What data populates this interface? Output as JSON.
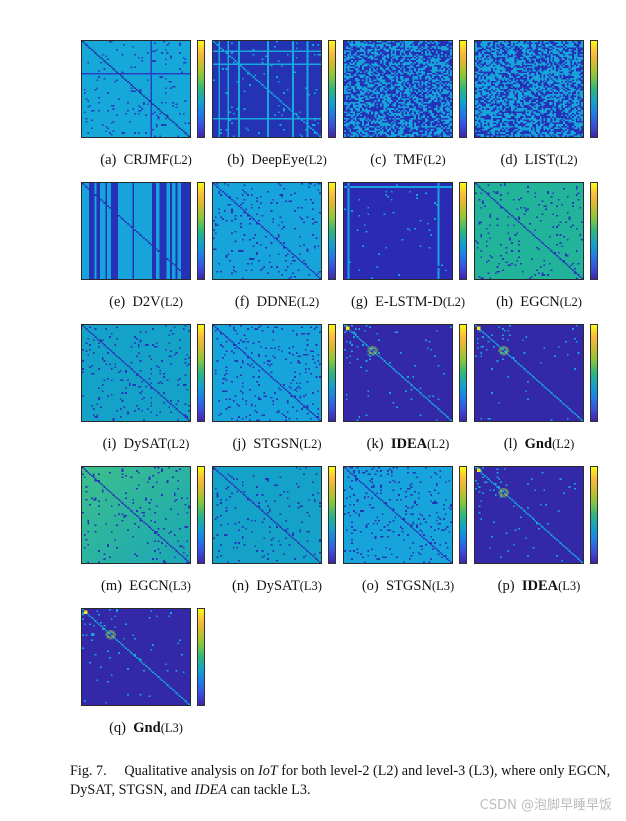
{
  "panels": [
    {
      "id": "(a)",
      "method": "CRJMF",
      "level": "(L2)",
      "bold": false,
      "style": {
        "bg": "#15a8d8",
        "dots": "#2340c0",
        "density": 0.045,
        "diag": "#1b2fa0",
        "seed": 1,
        "stripesH": "#2c3ec8"
      }
    },
    {
      "id": "(b)",
      "method": "DeepEye",
      "level": "(L2)",
      "bold": false,
      "style": {
        "bg": "#2432b4",
        "dots": "#11a6dc",
        "density": 0.02,
        "diag": "#11a6dc",
        "seed": 2,
        "stripes": "#18a8dc"
      }
    },
    {
      "id": "(c)",
      "method": "TMF",
      "level": "(L2)",
      "bold": false,
      "style": {
        "bg": "#2532b8",
        "dots": "#17a4db",
        "density": 0.5,
        "diag": "#2532b8",
        "seed": 3
      }
    },
    {
      "id": "(d)",
      "method": "LIST",
      "level": "(L2)",
      "bold": false,
      "style": {
        "bg": "#2532b8",
        "dots": "#17a4db",
        "density": 0.55,
        "diag": "#2532b8",
        "seed": 4
      }
    },
    {
      "id": "(e)",
      "method": "D2V",
      "level": "(L2)",
      "bold": false,
      "style": {
        "bg": "#17a4db",
        "dots": "#17a4db",
        "density": 0.0,
        "diag": "#2532b8",
        "seed": 5,
        "vstripes": "#2532b8"
      }
    },
    {
      "id": "(f)",
      "method": "DDNE",
      "level": "(L2)",
      "bold": false,
      "style": {
        "bg": "#17a4db",
        "dots": "#2536b8",
        "density": 0.05,
        "diag": "#2536b8",
        "seed": 6
      }
    },
    {
      "id": "(g)",
      "method": "E-LSTM-D",
      "level": "(L2)",
      "bold": false,
      "style": {
        "bg": "#2a2ab4",
        "dots": "#17a4db",
        "density": 0.01,
        "diag": "#2a2ab4",
        "seed": 7,
        "border": "#17a4db"
      }
    },
    {
      "id": "(h)",
      "method": "EGCN",
      "level": "(L2)",
      "bold": false,
      "style": {
        "bg": "#22b49a",
        "dots": "#2536b8",
        "density": 0.06,
        "diag": "#2536b8",
        "seed": 8
      }
    },
    {
      "id": "(i)",
      "method": "DySAT",
      "level": "(L2)",
      "bold": false,
      "style": {
        "bg": "#14a2c8",
        "dots": "#2536b8",
        "density": 0.05,
        "diag": "#2536b8",
        "seed": 9
      }
    },
    {
      "id": "(j)",
      "method": "STGSN",
      "level": "(L2)",
      "bold": false,
      "style": {
        "bg": "#17a4db",
        "dots": "#2536b8",
        "density": 0.08,
        "diag": "#2536b8",
        "seed": 10
      }
    },
    {
      "id": "(k)",
      "method": "IDEA",
      "level": "(L2)",
      "bold": true,
      "style": {
        "bg": "#3228a8",
        "dots": "#17a4db",
        "density": 0.012,
        "diag": "#17a4db",
        "seed": 11,
        "ring": true
      }
    },
    {
      "id": "(l)",
      "method": "Gnd",
      "level": "(L2)",
      "bold": true,
      "style": {
        "bg": "#3228a8",
        "dots": "#17a4db",
        "density": 0.012,
        "diag": "#17a4db",
        "seed": 12,
        "ring": true
      }
    },
    {
      "id": "(m)",
      "method": "EGCN",
      "level": "(L3)",
      "bold": false,
      "style": {
        "bg": "#2bb59a",
        "dots": "#2536b8",
        "density": 0.05,
        "diag": "#2536b8",
        "seed": 13,
        "gradient": true
      }
    },
    {
      "id": "(n)",
      "method": "DySAT",
      "level": "(L3)",
      "bold": false,
      "style": {
        "bg": "#14a2c8",
        "dots": "#2536b8",
        "density": 0.04,
        "diag": "#2536b8",
        "seed": 14
      }
    },
    {
      "id": "(o)",
      "method": "STGSN",
      "level": "(L3)",
      "bold": false,
      "style": {
        "bg": "#17a4db",
        "dots": "#2536b8",
        "density": 0.07,
        "diag": "#2536b8",
        "seed": 15
      }
    },
    {
      "id": "(p)",
      "method": "IDEA",
      "level": "(L3)",
      "bold": true,
      "style": {
        "bg": "#3228a8",
        "dots": "#17a4db",
        "density": 0.01,
        "diag": "#17a4db",
        "seed": 16,
        "ring": true
      }
    },
    {
      "id": "(q)",
      "method": "Gnd",
      "level": "(L3)",
      "bold": true,
      "style": {
        "bg": "#3228a8",
        "dots": "#17a4db",
        "density": 0.01,
        "diag": "#17a4db",
        "seed": 17,
        "ring": true
      }
    }
  ],
  "caption": {
    "fig": "Fig. 7.",
    "t1": "Qualitative analysis on ",
    "iot": "IoT",
    "t2": " for both level-2 (L2) and level-3 (L3), where only EGCN, DySAT, STGSN, and ",
    "idea": "IDEA",
    "t3": " can tackle L3."
  },
  "watermark": "CSDN @泡脚早睡早饭"
}
